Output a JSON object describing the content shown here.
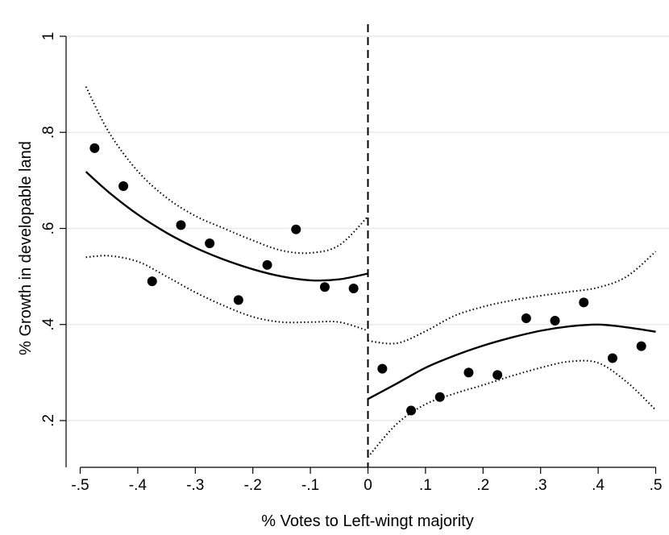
{
  "chart_data": {
    "type": "scatter",
    "title": "",
    "xlabel": "% Votes to Left-wingt majority",
    "ylabel": "% Growth in developable land",
    "xlim": [
      -0.5,
      0.5
    ],
    "ylim": [
      0.1,
      1.0
    ],
    "x_ticks": [
      -0.5,
      -0.4,
      -0.3,
      -0.2,
      -0.1,
      0,
      0.1,
      0.2,
      0.3,
      0.4,
      0.5
    ],
    "x_tick_labels": [
      "-.5",
      "-.4",
      "-.3",
      "-.2",
      "-.1",
      "0",
      ".1",
      ".2",
      ".3",
      ".4",
      ".5"
    ],
    "y_ticks": [
      0.2,
      0.4,
      0.6,
      0.8,
      1.0
    ],
    "y_tick_labels": [
      ".2",
      ".4",
      ".6",
      ".8",
      "1"
    ],
    "grid": "horizontal",
    "cutoff_x": 0,
    "colors": {
      "points": "#000000",
      "fit": "#000000",
      "grid": "#e4ecee",
      "axis": "#000000"
    },
    "scatter": {
      "x": [
        -0.475,
        -0.425,
        -0.375,
        -0.325,
        -0.275,
        -0.225,
        -0.175,
        -0.125,
        -0.075,
        -0.025,
        0.025,
        0.075,
        0.125,
        0.175,
        0.225,
        0.275,
        0.325,
        0.375,
        0.425,
        0.475
      ],
      "y": [
        0.767,
        0.688,
        0.49,
        0.607,
        0.569,
        0.451,
        0.524,
        0.598,
        0.478,
        0.475,
        0.308,
        0.221,
        0.249,
        0.3,
        0.295,
        0.413,
        0.408,
        0.446,
        0.33,
        0.355
      ]
    },
    "fit_left": {
      "x": [
        -0.49,
        -0.45,
        -0.4,
        -0.35,
        -0.3,
        -0.25,
        -0.2,
        -0.15,
        -0.1,
        -0.05,
        0
      ],
      "y": [
        0.718,
        0.675,
        0.629,
        0.591,
        0.56,
        0.535,
        0.515,
        0.5,
        0.492,
        0.494,
        0.506
      ],
      "upper": [
        0.895,
        0.8,
        0.719,
        0.664,
        0.626,
        0.6,
        0.575,
        0.554,
        0.549,
        0.565,
        0.625
      ],
      "lower": [
        0.54,
        0.543,
        0.531,
        0.5,
        0.467,
        0.439,
        0.416,
        0.405,
        0.405,
        0.405,
        0.387
      ]
    },
    "fit_right": {
      "x": [
        0,
        0.05,
        0.1,
        0.15,
        0.2,
        0.25,
        0.3,
        0.35,
        0.4,
        0.45,
        0.5
      ],
      "y": [
        0.245,
        0.277,
        0.31,
        0.335,
        0.356,
        0.373,
        0.387,
        0.396,
        0.4,
        0.394,
        0.385
      ],
      "upper": [
        0.366,
        0.361,
        0.386,
        0.418,
        0.437,
        0.45,
        0.46,
        0.468,
        0.477,
        0.5,
        0.552
      ],
      "lower": [
        0.124,
        0.193,
        0.234,
        0.256,
        0.274,
        0.293,
        0.31,
        0.323,
        0.32,
        0.28,
        0.222
      ]
    }
  }
}
